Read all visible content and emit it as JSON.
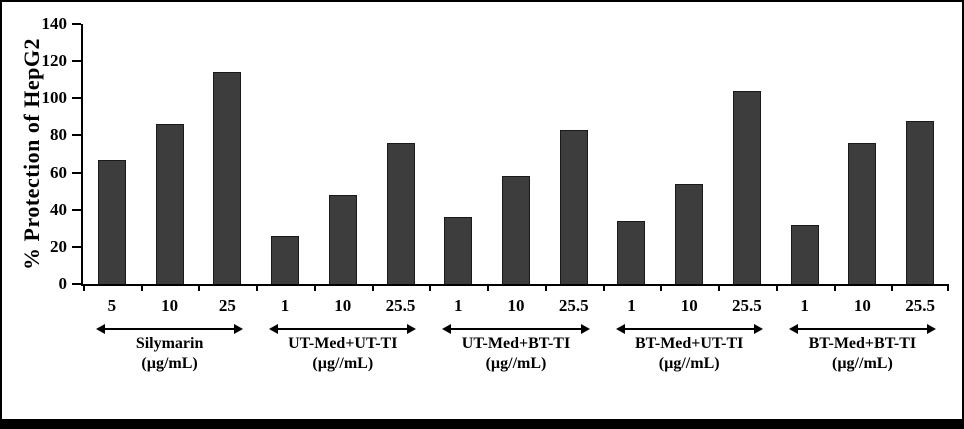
{
  "chart_data": {
    "type": "bar",
    "title": "",
    "ylabel": "% Protection of HepG2",
    "xlabel": "",
    "ylim": [
      0,
      140
    ],
    "yticks": [
      0,
      20,
      40,
      60,
      80,
      100,
      120,
      140
    ],
    "grid": false,
    "legend": "none",
    "bar_color": "#3d3d3d",
    "bar_border_color": "#1a1a1a",
    "axis_color": "#000000",
    "groups": [
      {
        "label": "Silymarin",
        "unit": "(µg/mL)",
        "categories": [
          "5",
          "10",
          "25"
        ],
        "values": [
          67,
          86,
          114
        ]
      },
      {
        "label": "UT-Med+UT-TI",
        "unit": "(µg//mL)",
        "categories": [
          "1",
          "10",
          "25.5"
        ],
        "values": [
          26,
          48,
          76
        ]
      },
      {
        "label": "UT-Med+BT-TI",
        "unit": "(µg//mL)",
        "categories": [
          "1",
          "10",
          "25.5"
        ],
        "values": [
          36,
          58,
          83
        ]
      },
      {
        "label": "BT-Med+UT-TI",
        "unit": "(µg//mL)",
        "categories": [
          "1",
          "10",
          "25.5"
        ],
        "values": [
          34,
          54,
          104
        ]
      },
      {
        "label": "BT-Med+BT-TI",
        "unit": "(µg//mL)",
        "categories": [
          "1",
          "10",
          "25.5"
        ],
        "values": [
          32,
          76,
          88
        ]
      }
    ]
  }
}
